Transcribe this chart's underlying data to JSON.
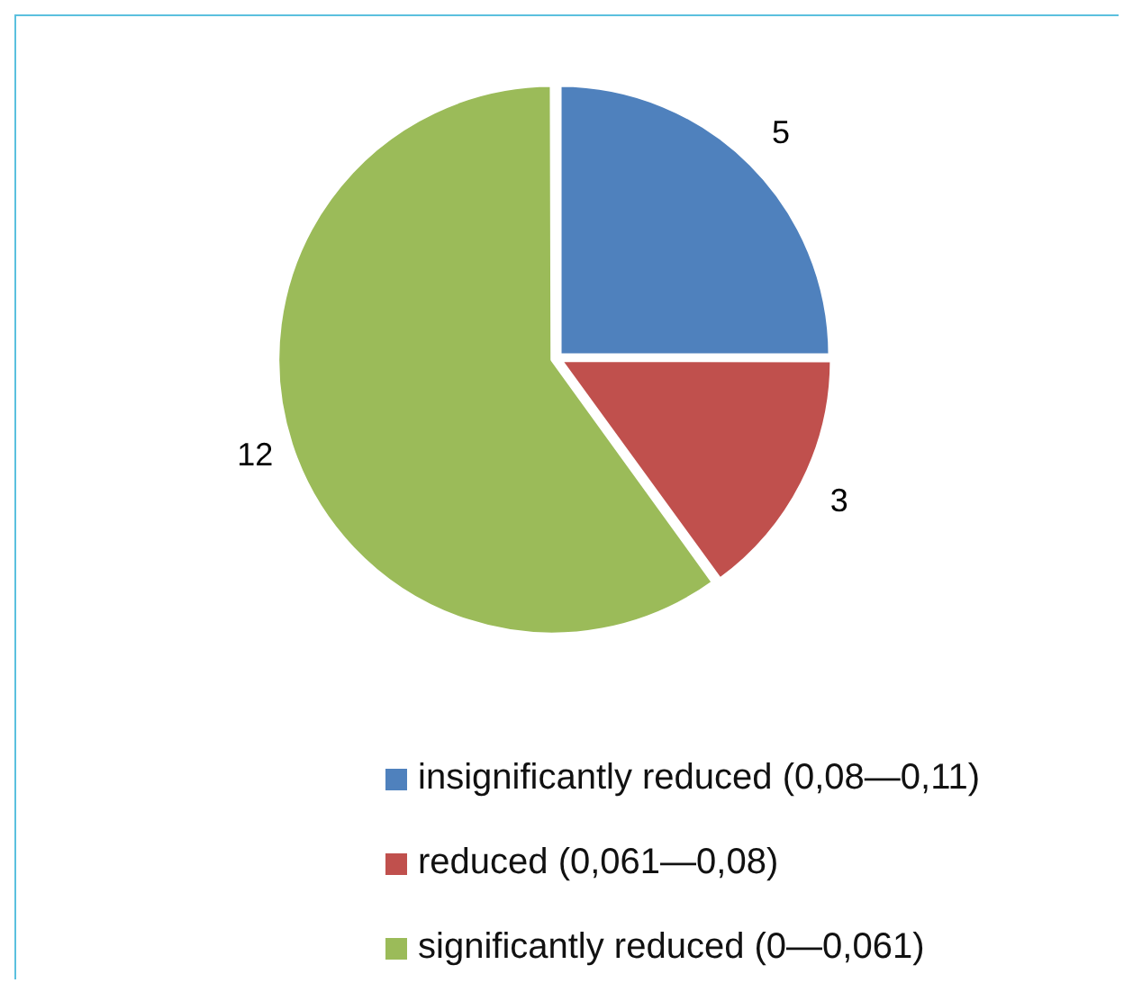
{
  "chart_data": {
    "type": "pie",
    "categories": [
      "insignificantly reduced (0,08—0,11)",
      "reduced (0,061—0,08)",
      "significantly reduced (0—0,061)"
    ],
    "values": [
      5,
      3,
      12
    ],
    "colors": [
      "#4f81bd",
      "#c0504d",
      "#9bbb59"
    ],
    "data_labels": true,
    "legend": "bottom"
  }
}
